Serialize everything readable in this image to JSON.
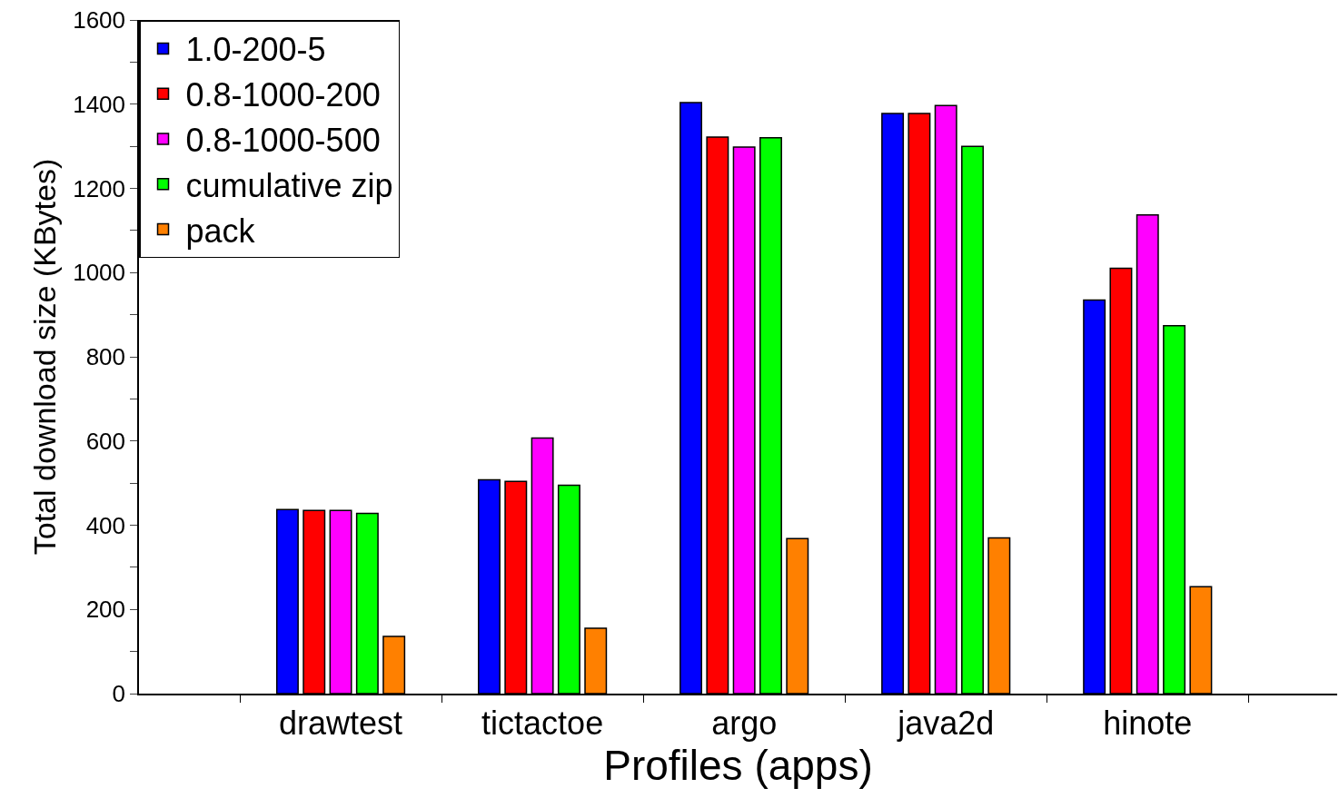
{
  "chart_data": {
    "type": "bar",
    "xlabel": "Profiles (apps)",
    "ylabel": "Total download size (KBytes)",
    "categories": [
      "drawtest",
      "tictactoe",
      "argo",
      "java2d",
      "hinote"
    ],
    "series": [
      {
        "name": "1.0-200-5",
        "color": "#0000ff",
        "values": [
          437,
          508,
          1404,
          1378,
          935
        ]
      },
      {
        "name": "0.8-1000-200",
        "color": "#ff0000",
        "values": [
          435,
          504,
          1322,
          1378,
          1010
        ]
      },
      {
        "name": "0.8-1000-500",
        "color": "#ff00ff",
        "values": [
          435,
          607,
          1298,
          1397,
          1137
        ]
      },
      {
        "name": "cumulative zip",
        "color": "#00ff00",
        "values": [
          428,
          495,
          1320,
          1300,
          874
        ]
      },
      {
        "name": "pack",
        "color": "#ff8000",
        "values": [
          136,
          155,
          368,
          370,
          254
        ]
      }
    ],
    "ylim": [
      0,
      1600
    ],
    "yticks": [
      0,
      {
        "value": 100,
        "label": null
      },
      200,
      {
        "value": 300,
        "label": null
      },
      400,
      {
        "value": 500,
        "label": null
      },
      600,
      {
        "value": 700,
        "label": null
      },
      800,
      {
        "value": 900,
        "label": null
      },
      1000,
      {
        "value": 1100,
        "label": null
      },
      1200,
      {
        "value": 1300,
        "label": null
      },
      1400,
      {
        "value": 1500,
        "label": null
      },
      1600
    ],
    "legend": "top left"
  }
}
